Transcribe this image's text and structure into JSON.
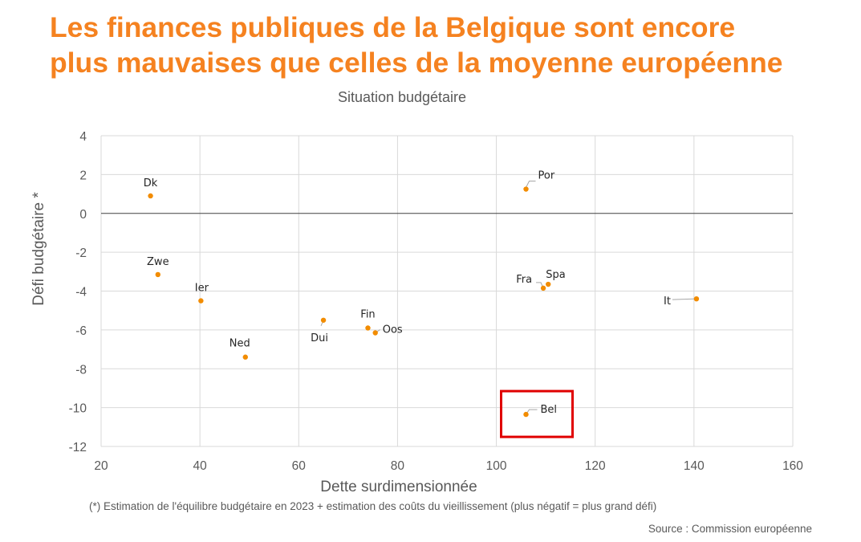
{
  "title": {
    "line1": "Les finances publiques de la Belgique sont encore",
    "line2": "plus mauvaises que celles de la moyenne européenne"
  },
  "footnote": "(*) Estimation de l'équilibre budgétaire en 2023 + estimation des coûts du vieillissement (plus négatif = plus grand défi)",
  "source": "Source : Commission européenne",
  "colors": {
    "title": "#f58220",
    "point": "#f28c00",
    "highlight": "#e00000",
    "grid": "#d9d9d9",
    "text": "#595959"
  },
  "chart_data": {
    "type": "scatter",
    "title": "Situation budgétaire",
    "xlabel": "Dette surdimensionnée",
    "ylabel": "Défi budgétaire *",
    "xlim": [
      20,
      160
    ],
    "ylim": [
      -12,
      4
    ],
    "xticks": [
      20,
      40,
      60,
      80,
      100,
      120,
      140,
      160
    ],
    "yticks": [
      4,
      2,
      0,
      -2,
      -4,
      -6,
      -8,
      -10,
      -12
    ],
    "grid": true,
    "highlight": "Bel",
    "points": [
      {
        "label": "Dk",
        "x": 30,
        "y": 0.9
      },
      {
        "label": "Zwe",
        "x": 31.5,
        "y": -3.15
      },
      {
        "label": "Ier",
        "x": 40.2,
        "y": -4.5
      },
      {
        "label": "Ned",
        "x": 49.2,
        "y": -7.4
      },
      {
        "label": "Dui",
        "x": 65,
        "y": -5.5
      },
      {
        "label": "Fin",
        "x": 74,
        "y": -5.9
      },
      {
        "label": "Oos",
        "x": 75.5,
        "y": -6.15
      },
      {
        "label": "Por",
        "x": 106,
        "y": 1.25
      },
      {
        "label": "Fra",
        "x": 109.5,
        "y": -3.85
      },
      {
        "label": "Spa",
        "x": 110.5,
        "y": -3.65
      },
      {
        "label": "It",
        "x": 140.5,
        "y": -4.4
      },
      {
        "label": "Bel",
        "x": 106,
        "y": -10.35
      }
    ]
  }
}
